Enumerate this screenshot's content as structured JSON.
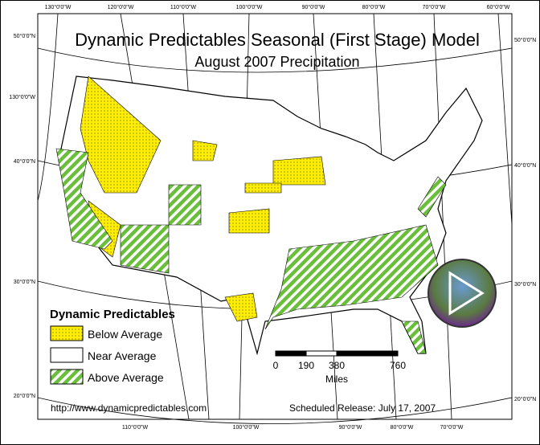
{
  "header": {
    "title": "Dynamic Predictables Seasonal (First Stage) Model",
    "subtitle": "August 2007 Precipitation"
  },
  "legend": {
    "title": "Dynamic Predictables",
    "items": [
      "Below Average",
      "Near Average",
      "Above Average"
    ]
  },
  "scale": {
    "labels": [
      "0",
      "190",
      "380",
      "760"
    ],
    "unit": "Miles"
  },
  "footer": {
    "url": "http://www.dynamicpredictables.com",
    "release": "Scheduled Release: July 17, 2007"
  },
  "graticule": {
    "top": [
      "130°0'0\"W",
      "120°0'0\"W",
      "110°0'0\"W",
      "100°0'0\"W",
      "90°0'0\"W",
      "80°0'0\"W",
      "70°0'0\"W",
      "60°0'0\"W"
    ],
    "left": [
      "50°0'0\"N",
      "130°0'0\"W",
      "40°0'0\"N",
      "30°0'0\"N",
      "20°0'0\"N"
    ],
    "right": [
      "50°0'0\"N",
      "40°0'0\"N",
      "30°0'0\"N",
      "20°0'0\"N"
    ],
    "bottom": [
      "110°0'0\"W",
      "100°0'0\"W",
      "90°0'0\"W",
      "80°0'0\"W",
      "70°0'0\"W"
    ]
  }
}
